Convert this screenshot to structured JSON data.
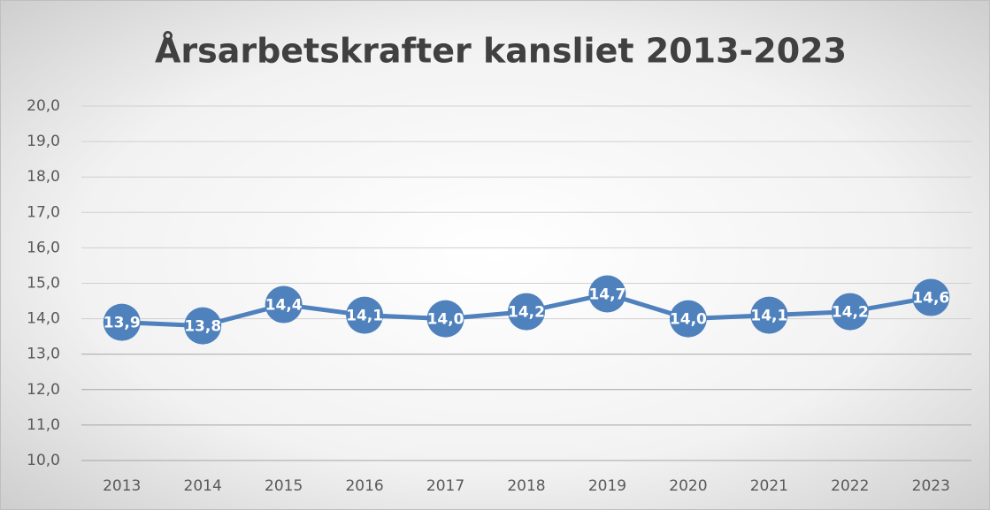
{
  "chart_data": {
    "type": "line",
    "title": "Årsarbetskrafter kansliet 2013-2023",
    "categories": [
      "2013",
      "2014",
      "2015",
      "2016",
      "2017",
      "2018",
      "2019",
      "2020",
      "2021",
      "2022",
      "2023"
    ],
    "series": [
      {
        "name": "Årsarbetskrafter",
        "color": "#4f81bd",
        "values": [
          13.9,
          13.8,
          14.4,
          14.1,
          14.0,
          14.2,
          14.7,
          14.0,
          14.1,
          14.2,
          14.6
        ],
        "value_labels": [
          "13,9",
          "13,8",
          "14,4",
          "14,1",
          "14,0",
          "14,2",
          "14,7",
          "14,0",
          "14,1",
          "14,2",
          "14,6"
        ]
      }
    ],
    "ylim": [
      10,
      20
    ],
    "yticks": [
      {
        "value": 10,
        "label": "10,0"
      },
      {
        "value": 11,
        "label": "11,0"
      },
      {
        "value": 12,
        "label": "12,0"
      },
      {
        "value": 13,
        "label": "13,0"
      },
      {
        "value": 14,
        "label": "14,0"
      },
      {
        "value": 15,
        "label": "15,0"
      },
      {
        "value": 16,
        "label": "16,0"
      },
      {
        "value": 17,
        "label": "17,0"
      },
      {
        "value": 18,
        "label": "18,0"
      },
      {
        "value": 19,
        "label": "19,0"
      },
      {
        "value": 20,
        "label": "20,0"
      }
    ],
    "grid": true
  }
}
